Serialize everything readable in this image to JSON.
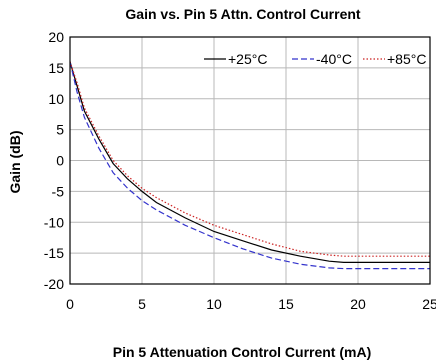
{
  "chart_data": {
    "type": "line",
    "title": "Gain vs. Pin 5 Attn. Control Current",
    "xlabel": "Pin 5 Attenuation Control Current (mA)",
    "ylabel": "Gain (dB)",
    "xlim": [
      0,
      25
    ],
    "ylim": [
      -20,
      20
    ],
    "xticks": [
      "0",
      "5",
      "10",
      "15",
      "20",
      "25"
    ],
    "yticks": [
      "20",
      "15",
      "10",
      "5",
      "0",
      "-5",
      "-10",
      "-15",
      "-20"
    ],
    "grid": true,
    "legend_position": "top-right",
    "series": [
      {
        "name": "+25°C",
        "color": "#000000",
        "dash": "solid",
        "points": [
          [
            0,
            16
          ],
          [
            0.5,
            12
          ],
          [
            1,
            8
          ],
          [
            2,
            3.5
          ],
          [
            3,
            -0.5
          ],
          [
            4,
            -3
          ],
          [
            5,
            -5
          ],
          [
            6,
            -6.8
          ],
          [
            8,
            -9.3
          ],
          [
            10,
            -11.5
          ],
          [
            12,
            -13
          ],
          [
            14,
            -14.5
          ],
          [
            16,
            -15.5
          ],
          [
            18,
            -16.3
          ],
          [
            19,
            -16.5
          ],
          [
            25,
            -16.5
          ]
        ]
      },
      {
        "name": "-40°C",
        "color": "#3333cc",
        "dash": "dashed",
        "points": [
          [
            0,
            16
          ],
          [
            0.5,
            11
          ],
          [
            1,
            7
          ],
          [
            2,
            2
          ],
          [
            3,
            -2
          ],
          [
            4,
            -4.5
          ],
          [
            5,
            -6.5
          ],
          [
            6,
            -8
          ],
          [
            8,
            -10.5
          ],
          [
            10,
            -12.5
          ],
          [
            12,
            -14.3
          ],
          [
            14,
            -15.8
          ],
          [
            16,
            -16.8
          ],
          [
            18,
            -17.4
          ],
          [
            19,
            -17.5
          ],
          [
            25,
            -17.5
          ]
        ]
      },
      {
        "name": "+85°C",
        "color": "#cc2222",
        "dash": "dotted",
        "points": [
          [
            0,
            16
          ],
          [
            0.5,
            12.5
          ],
          [
            1,
            8.5
          ],
          [
            2,
            4
          ],
          [
            3,
            0
          ],
          [
            4,
            -2.5
          ],
          [
            5,
            -4.5
          ],
          [
            6,
            -6
          ],
          [
            8,
            -8.5
          ],
          [
            10,
            -10.5
          ],
          [
            12,
            -12
          ],
          [
            14,
            -13.5
          ],
          [
            16,
            -14.7
          ],
          [
            18,
            -15.3
          ],
          [
            19,
            -15.5
          ],
          [
            25,
            -15.5
          ]
        ]
      }
    ]
  }
}
